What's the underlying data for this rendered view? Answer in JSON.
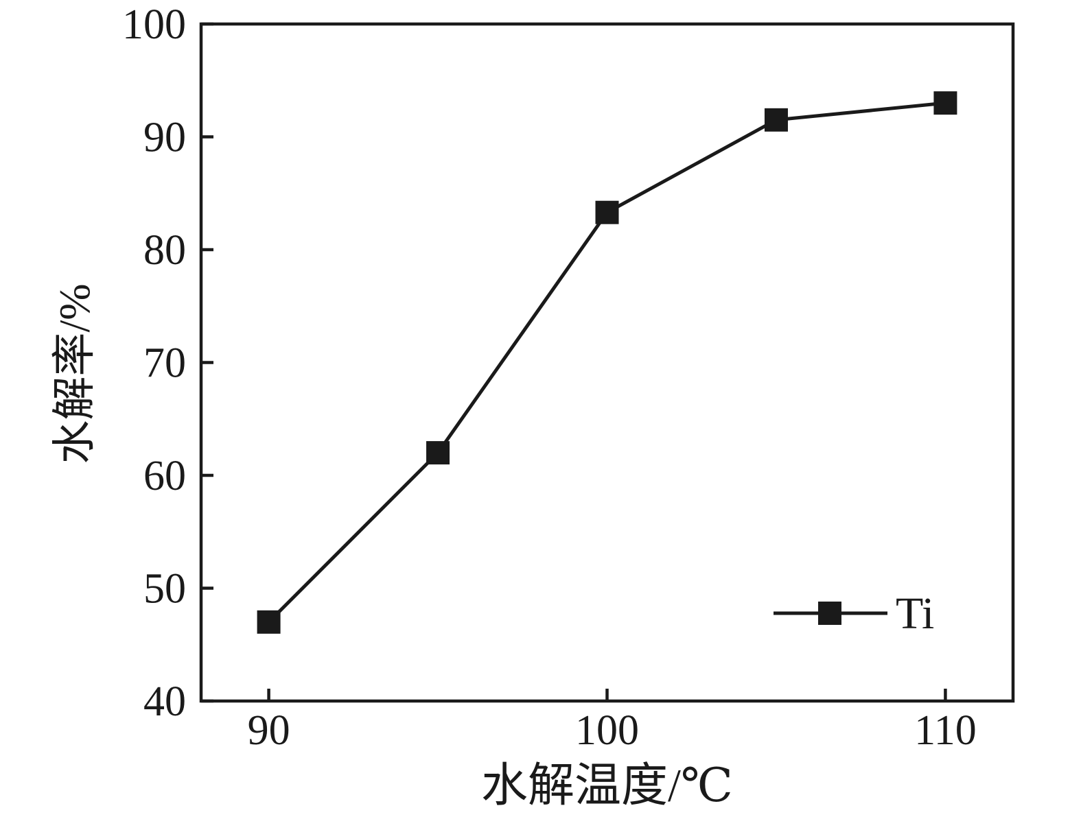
{
  "chart_data": {
    "type": "line",
    "title": "",
    "xlabel": "水解温度/℃",
    "ylabel": "水解率/%",
    "x": [
      90,
      95,
      100,
      105,
      110
    ],
    "series": [
      {
        "name": "Ti",
        "values": [
          47,
          62,
          83.3,
          91.5,
          93
        ]
      }
    ],
    "xlim": [
      88,
      112
    ],
    "ylim": [
      40,
      100
    ],
    "xticks": [
      90,
      100,
      110
    ],
    "yticks": [
      40,
      50,
      60,
      70,
      80,
      90,
      100
    ],
    "grid": false,
    "marker": "square",
    "line_color": "#1a1a1a",
    "marker_color": "#1a1a1a",
    "background": "#ffffff",
    "legend": {
      "label": "Ti",
      "position": "inside-bottom-right",
      "marker": "square"
    }
  }
}
